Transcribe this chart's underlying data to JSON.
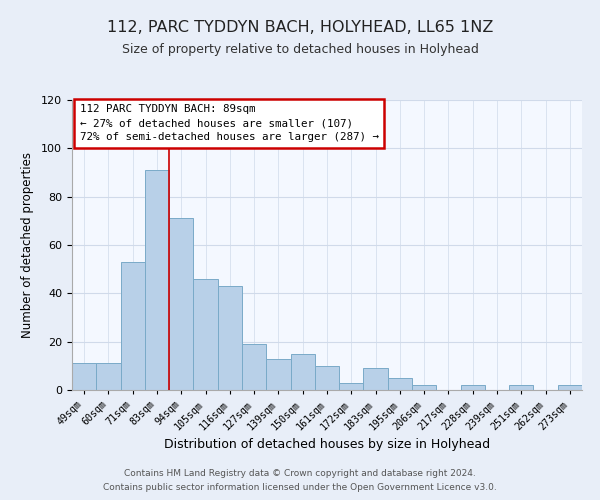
{
  "title": "112, PARC TYDDYN BACH, HOLYHEAD, LL65 1NZ",
  "subtitle": "Size of property relative to detached houses in Holyhead",
  "xlabel": "Distribution of detached houses by size in Holyhead",
  "ylabel": "Number of detached properties",
  "categories": [
    "49sqm",
    "60sqm",
    "71sqm",
    "83sqm",
    "94sqm",
    "105sqm",
    "116sqm",
    "127sqm",
    "139sqm",
    "150sqm",
    "161sqm",
    "172sqm",
    "183sqm",
    "195sqm",
    "206sqm",
    "217sqm",
    "228sqm",
    "239sqm",
    "251sqm",
    "262sqm",
    "273sqm"
  ],
  "values": [
    11,
    11,
    53,
    91,
    71,
    46,
    43,
    19,
    13,
    15,
    10,
    3,
    9,
    5,
    2,
    0,
    2,
    0,
    2,
    0,
    2
  ],
  "bar_color": "#b8d0e8",
  "bar_edge_color": "#7aaac8",
  "ylim": [
    0,
    120
  ],
  "yticks": [
    0,
    20,
    40,
    60,
    80,
    100,
    120
  ],
  "annotation_title": "112 PARC TYDDYN BACH: 89sqm",
  "annotation_line1": "← 27% of detached houses are smaller (107)",
  "annotation_line2": "72% of semi-detached houses are larger (287) →",
  "annotation_box_color": "#ffffff",
  "annotation_box_edge_color": "#cc0000",
  "property_bar_index": 4,
  "property_line_color": "#cc0000",
  "footer_line1": "Contains HM Land Registry data © Crown copyright and database right 2024.",
  "footer_line2": "Contains public sector information licensed under the Open Government Licence v3.0.",
  "background_color": "#e8eef8",
  "plot_background_color": "#f4f8ff",
  "grid_color": "#d0daea",
  "title_fontsize": 11.5,
  "subtitle_fontsize": 9
}
